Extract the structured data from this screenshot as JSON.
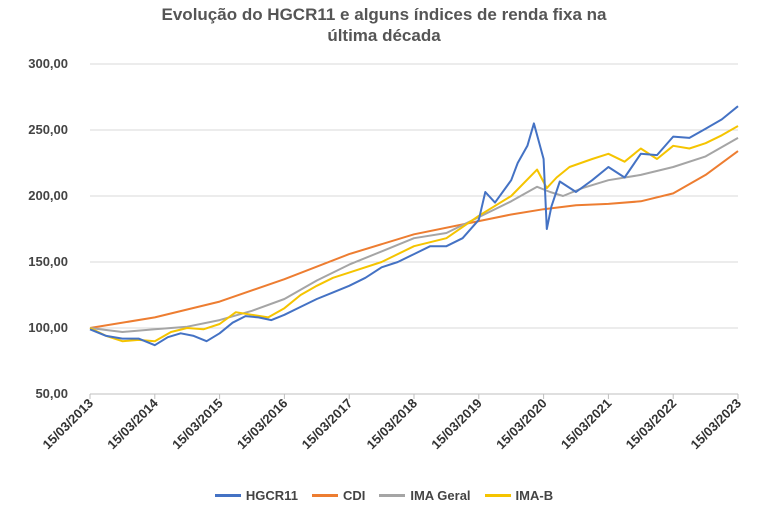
{
  "chart_data": {
    "type": "line",
    "title_lines": [
      "Evolução do HGCR11 e alguns índices de renda fixa na",
      "última década"
    ],
    "xlabel": "",
    "ylabel": "",
    "ylim": [
      50,
      300
    ],
    "yticks": [
      50,
      100,
      150,
      200,
      250,
      300
    ],
    "ytick_labels": [
      "50,00",
      "100,00",
      "150,00",
      "200,00",
      "250,00",
      "300,00"
    ],
    "xlim": [
      2013.0,
      2023.0
    ],
    "x_tick_labels": [
      "15/03/2013",
      "15/03/2014",
      "15/03/2015",
      "15/03/2016",
      "15/03/2017",
      "15/03/2018",
      "15/03/2019",
      "15/03/2020",
      "15/03/2021",
      "15/03/2022",
      "15/03/2023"
    ],
    "x_tick_positions": [
      2013,
      2014,
      2015,
      2016,
      2017,
      2018,
      2019,
      2020,
      2021,
      2022,
      2023
    ],
    "grid": "horizontal",
    "legend_position": "bottom",
    "series": [
      {
        "name": "HGCR11",
        "color": "#4472C4",
        "x": [
          2013.0,
          2013.25,
          2013.5,
          2013.75,
          2014.0,
          2014.2,
          2014.4,
          2014.6,
          2014.8,
          2015.0,
          2015.2,
          2015.4,
          2015.6,
          2015.8,
          2016.0,
          2016.25,
          2016.5,
          2016.75,
          2017.0,
          2017.25,
          2017.5,
          2017.75,
          2018.0,
          2018.25,
          2018.5,
          2018.75,
          2019.0,
          2019.1,
          2019.25,
          2019.5,
          2019.6,
          2019.75,
          2019.85,
          2020.0,
          2020.05,
          2020.12,
          2020.25,
          2020.5,
          2020.75,
          2021.0,
          2021.25,
          2021.5,
          2021.75,
          2022.0,
          2022.25,
          2022.5,
          2022.75,
          2023.0
        ],
        "values": [
          99,
          94,
          92,
          92,
          87,
          93,
          96,
          94,
          90,
          96,
          104,
          109,
          108,
          106,
          110,
          116,
          122,
          127,
          132,
          138,
          146,
          150,
          156,
          162,
          162,
          168,
          182,
          203,
          195,
          212,
          225,
          238,
          255,
          228,
          175,
          192,
          211,
          203,
          212,
          222,
          214,
          232,
          231,
          245,
          244,
          251,
          258,
          268
        ]
      },
      {
        "name": "CDI",
        "color": "#ED7D31",
        "x": [
          2013.0,
          2014.0,
          2015.0,
          2016.0,
          2017.0,
          2018.0,
          2019.0,
          2019.5,
          2020.0,
          2020.5,
          2021.0,
          2021.5,
          2022.0,
          2022.5,
          2023.0
        ],
        "values": [
          100,
          108,
          120,
          137,
          156,
          171,
          181,
          186,
          190,
          193,
          194,
          196,
          202,
          216,
          234
        ]
      },
      {
        "name": "IMA Geral",
        "color": "#A5A5A5",
        "x": [
          2013.0,
          2013.5,
          2014.0,
          2014.5,
          2015.0,
          2015.5,
          2016.0,
          2016.5,
          2017.0,
          2017.5,
          2018.0,
          2018.5,
          2019.0,
          2019.5,
          2019.9,
          2020.1,
          2020.3,
          2020.6,
          2021.0,
          2021.5,
          2022.0,
          2022.5,
          2023.0
        ],
        "values": [
          100,
          97,
          99,
          101,
          106,
          113,
          122,
          136,
          148,
          158,
          168,
          172,
          184,
          196,
          207,
          203,
          200,
          206,
          212,
          216,
          222,
          230,
          244
        ]
      },
      {
        "name": "IMA-B",
        "color": "#F5C400",
        "x": [
          2013.0,
          2013.25,
          2013.5,
          2013.75,
          2014.0,
          2014.25,
          2014.5,
          2014.75,
          2015.0,
          2015.25,
          2015.5,
          2015.75,
          2016.0,
          2016.25,
          2016.5,
          2016.75,
          2017.0,
          2017.5,
          2018.0,
          2018.5,
          2019.0,
          2019.5,
          2019.9,
          2020.05,
          2020.2,
          2020.4,
          2020.75,
          2021.0,
          2021.25,
          2021.5,
          2021.75,
          2022.0,
          2022.25,
          2022.5,
          2022.75,
          2023.0
        ],
        "values": [
          100,
          94,
          90,
          91,
          90,
          97,
          100,
          99,
          103,
          112,
          110,
          108,
          115,
          125,
          132,
          138,
          142,
          150,
          162,
          168,
          185,
          200,
          220,
          206,
          214,
          222,
          228,
          232,
          226,
          236,
          228,
          238,
          236,
          240,
          246,
          253
        ]
      }
    ]
  }
}
